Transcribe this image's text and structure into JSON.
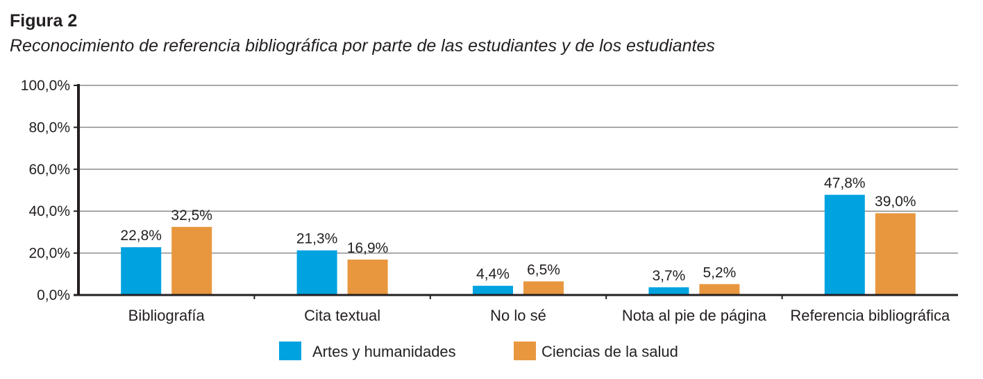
{
  "figure": {
    "label": "Figura 2",
    "caption": "Reconocimiento de referencia bibliográfica por parte de las estudiantes y de los estudiantes"
  },
  "chart_data": {
    "type": "bar",
    "categories": [
      "Bibliografía",
      "Cita textual",
      "No lo sé",
      "Nota al pie de página",
      "Referencia bibliográfica"
    ],
    "series": [
      {
        "name": "Artes y humanidades",
        "color": "#00a3e0",
        "values": [
          22.8,
          21.3,
          4.4,
          3.7,
          47.8
        ],
        "labels": [
          "22,8%",
          "21,3%",
          "4,4%",
          "3,7%",
          "47,8%"
        ]
      },
      {
        "name": "Ciencias de la salud",
        "color": "#e8973f",
        "values": [
          32.5,
          16.9,
          6.5,
          5.2,
          39.0
        ],
        "labels": [
          "32,5%",
          "16,9%",
          "6,5%",
          "5,2%",
          "39,0%"
        ]
      }
    ],
    "yticks": [
      0,
      20,
      40,
      60,
      80,
      100
    ],
    "ytick_labels": [
      "0,0%",
      "20,0%",
      "40,0%",
      "60,0%",
      "80,0%",
      "100,0%"
    ],
    "ylim": [
      0,
      100
    ],
    "grid": true,
    "legend_position": "bottom"
  }
}
